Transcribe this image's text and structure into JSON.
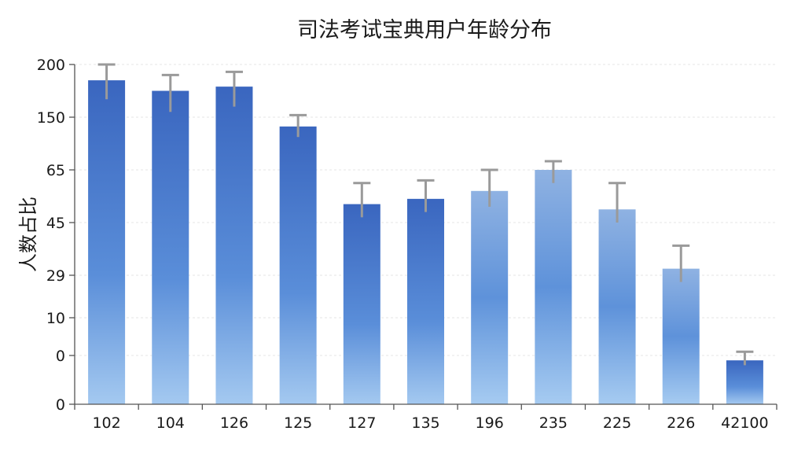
{
  "chart_data": {
    "type": "bar",
    "title": "司法考试宝典用户年龄分布",
    "ylabel": "人数占比",
    "xlabel": "",
    "yticks": [
      "0",
      "0",
      "10",
      "29",
      "45",
      "65",
      "150",
      "200"
    ],
    "categories": [
      "102",
      "104",
      "126",
      "125",
      "127",
      "135",
      "196",
      "235",
      "225",
      "226",
      "42100"
    ],
    "values": [
      185,
      175,
      179,
      135,
      52,
      54,
      57,
      65,
      50,
      31,
      -2
    ],
    "error_low": [
      167,
      155,
      160,
      118,
      47,
      49,
      51,
      60,
      45,
      26,
      -4
    ],
    "error_high": [
      202,
      190,
      193,
      152,
      60,
      61,
      65,
      79,
      60,
      38,
      1
    ],
    "grid": true,
    "colors": {
      "bar_dark": "#3a66bf",
      "bar_light": "#9cc3ee",
      "error_bar": "#9a9a9a"
    }
  }
}
